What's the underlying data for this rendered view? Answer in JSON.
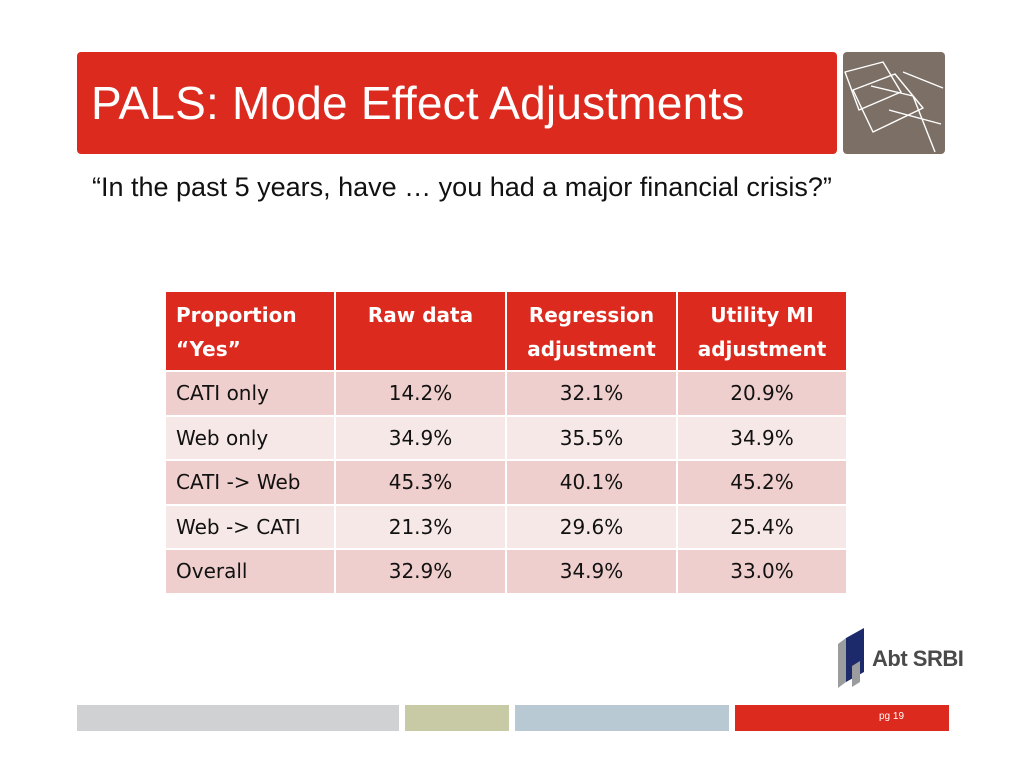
{
  "slide": {
    "title": "PALS: Mode Effect Adjustments",
    "question": "“In the past 5 years, have … you had a major financial crisis?”",
    "page_number": "pg 19"
  },
  "table": {
    "headers": [
      "Proportion “Yes”",
      "Raw data",
      "Regression adjustment",
      "Utility MI adjustment"
    ],
    "rows": [
      [
        "CATI only",
        "14.2%",
        "32.1%",
        "20.9%"
      ],
      [
        "Web only",
        "34.9%",
        "35.5%",
        "34.9%"
      ],
      [
        "CATI -> Web",
        "45.3%",
        "40.1%",
        "45.2%"
      ],
      [
        "Web -> CATI",
        "21.3%",
        "29.6%",
        "25.4%"
      ],
      [
        "Overall",
        "32.9%",
        "34.9%",
        "33.0%"
      ]
    ]
  },
  "logo": {
    "text": "Abt SRBI"
  },
  "colors": {
    "accent_red": "#dc2a1f",
    "deco_brown": "#7c6f66",
    "row_odd": "#efcfcd",
    "row_even": "#f6e8e7"
  }
}
